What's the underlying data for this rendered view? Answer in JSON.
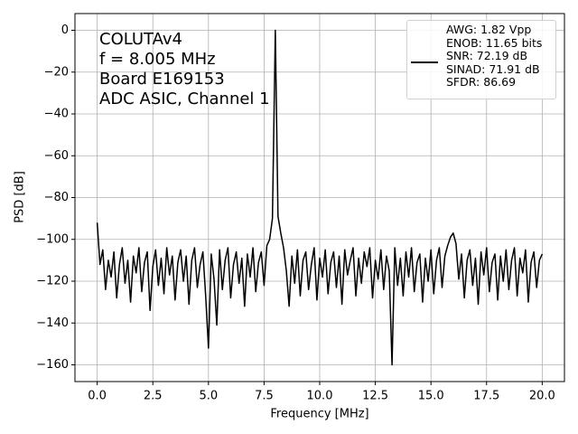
{
  "chart_data": {
    "type": "line",
    "annotation": [
      "COLUTAv4",
      "f = 8.005 MHz",
      "Board E169153",
      "ADC ASIC, Channel 1"
    ],
    "x_label": "Frequency [MHz]",
    "y_label": "PSD [dB]",
    "xlim": [
      -1,
      21
    ],
    "ylim": [
      -168,
      8
    ],
    "grid": true,
    "legend": "upper right",
    "xticks": [
      {
        "value": 0,
        "label": "0.0"
      },
      2.5,
      {
        "value": 5,
        "label": "5.0"
      },
      7.5,
      {
        "value": 10,
        "label": "10.0"
      },
      12.5,
      {
        "value": 15,
        "label": "15.0"
      },
      17.5,
      {
        "value": 20,
        "label": "20.0"
      }
    ],
    "yticks": [
      0,
      {
        "value": -20,
        "label": "−20"
      },
      {
        "value": -40,
        "label": "−40"
      },
      {
        "value": -60,
        "label": "−60"
      },
      {
        "value": -80,
        "label": "−80"
      },
      {
        "value": -100,
        "label": "−100"
      },
      {
        "value": -120,
        "label": "−120"
      },
      {
        "value": -140,
        "label": "−140"
      },
      {
        "value": -160,
        "label": "−160"
      }
    ],
    "x": [
      0,
      0.125,
      0.25,
      0.375,
      0.5,
      0.625,
      0.75,
      0.875,
      1,
      1.125,
      1.25,
      1.375,
      1.5,
      1.625,
      1.75,
      1.875,
      2,
      2.125,
      2.25,
      2.375,
      2.5,
      2.625,
      2.75,
      2.875,
      3,
      3.125,
      3.25,
      3.375,
      3.5,
      3.625,
      3.75,
      3.875,
      4,
      4.125,
      4.25,
      4.375,
      4.5,
      4.625,
      4.75,
      4.875,
      5,
      5.125,
      5.25,
      5.375,
      5.5,
      5.625,
      5.75,
      5.875,
      6,
      6.125,
      6.25,
      6.375,
      6.5,
      6.625,
      6.75,
      6.875,
      7,
      7.125,
      7.25,
      7.375,
      7.5,
      7.625,
      7.75,
      7.875,
      8.005,
      8.125,
      8.25,
      8.375,
      8.5,
      8.625,
      8.75,
      8.875,
      9,
      9.125,
      9.25,
      9.375,
      9.5,
      9.625,
      9.75,
      9.875,
      10,
      10.125,
      10.25,
      10.375,
      10.5,
      10.625,
      10.75,
      10.875,
      11,
      11.125,
      11.25,
      11.375,
      11.5,
      11.625,
      11.75,
      11.875,
      12,
      12.125,
      12.25,
      12.375,
      12.5,
      12.625,
      12.75,
      12.875,
      13,
      13.125,
      13.25,
      13.375,
      13.5,
      13.625,
      13.75,
      13.875,
      14,
      14.125,
      14.25,
      14.375,
      14.5,
      14.625,
      14.75,
      14.875,
      15,
      15.125,
      15.25,
      15.375,
      15.5,
      15.625,
      15.75,
      15.875,
      16,
      16.125,
      16.25,
      16.375,
      16.5,
      16.625,
      16.75,
      16.875,
      17,
      17.125,
      17.25,
      17.375,
      17.5,
      17.625,
      17.75,
      17.875,
      18,
      18.125,
      18.25,
      18.375,
      18.5,
      18.625,
      18.75,
      18.875,
      19,
      19.125,
      19.25,
      19.375,
      19.5,
      19.625,
      19.75,
      19.875,
      20
    ],
    "series": [
      {
        "name": "AWG: 1.82 Vpp\nENOB: 11.65 bits\nSNR: 72.19 dB\nSINAD: 71.91 dB\nSFDR: 86.69",
        "color": "#000000",
        "values": [
          -92,
          -112,
          -105,
          -124,
          -110,
          -118,
          -106,
          -128,
          -112,
          -104,
          -121,
          -110,
          -130,
          -108,
          -116,
          -104,
          -125,
          -111,
          -106,
          -134,
          -113,
          -105,
          -122,
          -109,
          -126,
          -104,
          -117,
          -108,
          -129,
          -111,
          -105,
          -120,
          -108,
          -131,
          -110,
          -104,
          -123,
          -112,
          -106,
          -127,
          -152,
          -107,
          -119,
          -141,
          -105,
          -124,
          -110,
          -104,
          -128,
          -112,
          -106,
          -121,
          -109,
          -132,
          -107,
          -118,
          -104,
          -125,
          -111,
          -106,
          -122,
          -103,
          -100,
          -90,
          0,
          -89,
          -97,
          -104,
          -115,
          -132,
          -108,
          -121,
          -105,
          -127,
          -110,
          -106,
          -124,
          -112,
          -104,
          -129,
          -109,
          -118,
          -105,
          -126,
          -111,
          -106,
          -123,
          -108,
          -131,
          -105,
          -117,
          -110,
          -104,
          -127,
          -109,
          -121,
          -106,
          -113,
          -104,
          -128,
          -110,
          -119,
          -105,
          -124,
          -108,
          -115,
          -160,
          -104,
          -122,
          -109,
          -127,
          -106,
          -118,
          -104,
          -125,
          -111,
          -107,
          -130,
          -109,
          -120,
          -105,
          -126,
          -110,
          -104,
          -123,
          -108,
          -103,
          -99,
          -97,
          -102,
          -119,
          -107,
          -128,
          -110,
          -105,
          -122,
          -109,
          -131,
          -106,
          -117,
          -104,
          -125,
          -111,
          -107,
          -129,
          -108,
          -120,
          -105,
          -124,
          -110,
          -104,
          -127,
          -109,
          -116,
          -105,
          -130,
          -111,
          -106,
          -123,
          -110,
          -107
        ]
      }
    ]
  }
}
